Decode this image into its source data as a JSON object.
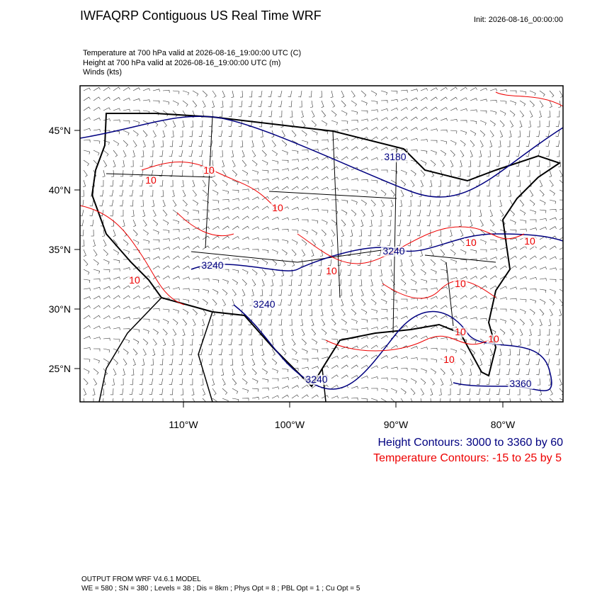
{
  "header": {
    "title": "IWFAQRP Contiguous US Real Time WRF",
    "init": "Init: 2026-08-16_00:00:00"
  },
  "fields": [
    "Temperature at 700 hPa valid at 2026-08-16_19:00:00 UTC   (C)",
    "Height at 700 hPa valid at 2026-08-16_19:00:00 UTC   (m)",
    "Winds   (kts)"
  ],
  "map": {
    "lat_labels": [
      "45°N",
      "40°N",
      "35°N",
      "30°N",
      "25°N"
    ],
    "lon_labels": [
      "110°W",
      "100°W",
      "90°W",
      "80°W"
    ],
    "height_labels": [
      "3180",
      "3240",
      "3240",
      "3240",
      "3240",
      "3360"
    ],
    "temp_labels": [
      "10",
      "10",
      "10",
      "10",
      "10",
      "10",
      "10",
      "10",
      "10",
      "10",
      "10"
    ]
  },
  "legend": {
    "height": "Height Contours: 3000 to 3360 by 60",
    "temperature": "Temperature Contours: -15 to 25 by 5"
  },
  "footer": [
    "OUTPUT FROM WRF V4.6.1 MODEL",
    "WE = 580 ; SN = 380 ; Levels = 38 ; Dis = 8km ; Phys Opt = 8 ; PBL Opt = 1 ; Cu Opt = 5"
  ]
}
